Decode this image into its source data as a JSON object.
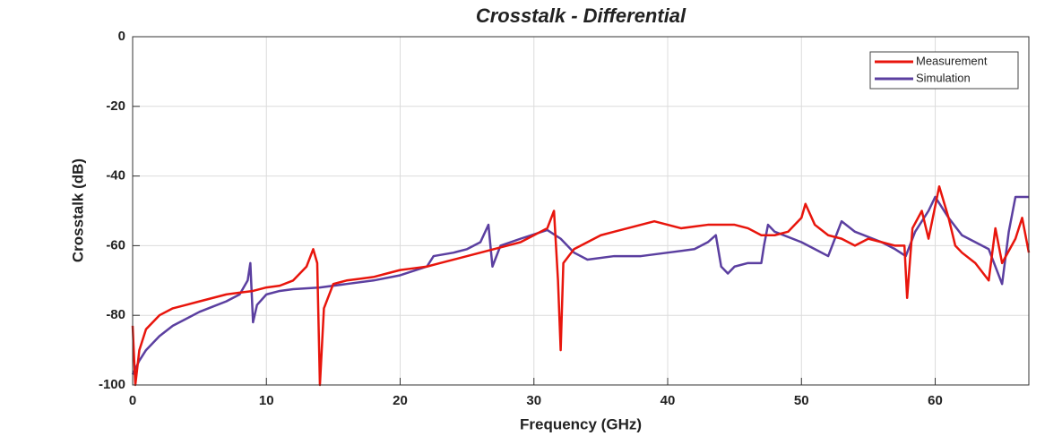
{
  "chart_data": {
    "type": "line",
    "title": "Crosstalk - Differential",
    "x_label": "Frequency (GHz)",
    "y_label": "Crosstalk (dB)",
    "xlim": [
      0,
      67
    ],
    "ylim": [
      -100,
      0
    ],
    "xticks": [
      0,
      10,
      20,
      30,
      40,
      50,
      60
    ],
    "yticks": [
      0,
      -20,
      -40,
      -60,
      -80,
      -100
    ],
    "grid": true,
    "legend": "upper right",
    "series": [
      {
        "name": "Measurement",
        "color": "#e8150c",
        "x": [
          0,
          0.2,
          0.5,
          1,
          2,
          3,
          4,
          5,
          6,
          7,
          8,
          9,
          10,
          11,
          12,
          13,
          13.5,
          13.8,
          14,
          14.3,
          15,
          16,
          17,
          18,
          19,
          20,
          21,
          22,
          23,
          24,
          25,
          26,
          27,
          28,
          29,
          30,
          31,
          31.5,
          31.8,
          32,
          32.2,
          33,
          34,
          35,
          36,
          37,
          38,
          39,
          40,
          41,
          42,
          43,
          44,
          45,
          46,
          47,
          48,
          49,
          50,
          50.3,
          51,
          52,
          53,
          54,
          55,
          56,
          57,
          57.7,
          57.9,
          58.3,
          59,
          59.5,
          60.3,
          61,
          61.5,
          62,
          63,
          64,
          64.5,
          65,
          66,
          66.5,
          67
        ],
        "values": [
          -83,
          -100,
          -90,
          -84,
          -80,
          -78,
          -77,
          -76,
          -75,
          -74,
          -73.5,
          -73,
          -72,
          -71.5,
          -70,
          -66,
          -61,
          -65,
          -100,
          -78,
          -71,
          -70,
          -69.5,
          -69,
          -68,
          -67,
          -66.5,
          -66,
          -65,
          -64,
          -63,
          -62,
          -61,
          -60,
          -59,
          -57,
          -55,
          -50,
          -70,
          -90,
          -65,
          -61,
          -59,
          -57,
          -56,
          -55,
          -54,
          -53,
          -54,
          -55,
          -54.5,
          -54,
          -54,
          -54,
          -55,
          -57,
          -57,
          -56,
          -52,
          -48,
          -54,
          -57,
          -58,
          -60,
          -58,
          -59,
          -60,
          -60,
          -75,
          -55,
          -50,
          -58,
          -43,
          -52,
          -60,
          -62,
          -65,
          -70,
          -55,
          -65,
          -58,
          -52,
          -62
        ]
      },
      {
        "name": "Simulation",
        "color": "#5b3fa0",
        "x": [
          0,
          0.5,
          1,
          2,
          3,
          4,
          5,
          6,
          7,
          8,
          8.6,
          8.8,
          9,
          9.3,
          10,
          11,
          12,
          14,
          16,
          18,
          20,
          22,
          22.5,
          24,
          25,
          26,
          26.6,
          26.9,
          27.5,
          29,
          31,
          32,
          33,
          34,
          36,
          38,
          40,
          42,
          43,
          43.6,
          44,
          44.5,
          45,
          46,
          47,
          47.2,
          47.5,
          48,
          50,
          51,
          52,
          52.5,
          53,
          54,
          56,
          57,
          57.8,
          58.5,
          59.5,
          60,
          61,
          62,
          63,
          64,
          65,
          65.5,
          66,
          67
        ],
        "values": [
          -97,
          -93,
          -90,
          -86,
          -83,
          -81,
          -79,
          -77.5,
          -76,
          -74,
          -70,
          -65,
          -82,
          -77,
          -74,
          -73,
          -72.5,
          -72,
          -71,
          -70,
          -68.5,
          -66,
          -63,
          -62,
          -61,
          -59,
          -54,
          -66,
          -60,
          -58,
          -55.5,
          -58,
          -62,
          -64,
          -63,
          -63,
          -62,
          -61,
          -59,
          -57,
          -66,
          -68,
          -66,
          -65,
          -65,
          -60,
          -54,
          -56,
          -59,
          -61,
          -63,
          -58,
          -53,
          -56,
          -59,
          -61,
          -63,
          -56,
          -50,
          -46,
          -52,
          -57,
          -59,
          -61,
          -71,
          -56,
          -46,
          -46
        ]
      }
    ]
  }
}
